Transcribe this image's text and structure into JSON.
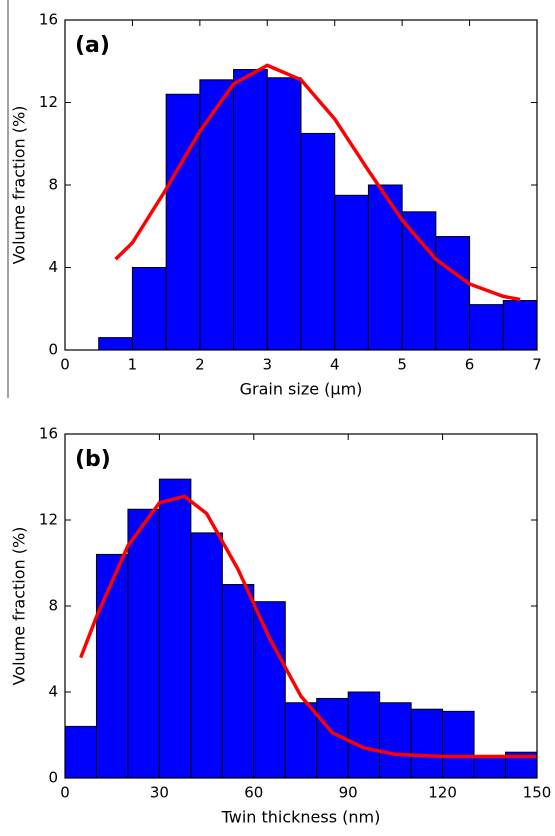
{
  "chart_data": [
    {
      "type": "histogram",
      "label": "(a)",
      "xlabel": "Grain size (μm)",
      "ylabel": "Volume fraction (%)",
      "bins": [
        0.5,
        1,
        1.5,
        2,
        2.5,
        3,
        3.5,
        4,
        4.5,
        5,
        5.5,
        6,
        6.5,
        7
      ],
      "values": [
        0.6,
        4.0,
        12.4,
        13.1,
        13.6,
        13.2,
        10.5,
        7.5,
        8.0,
        6.7,
        5.5,
        2.2,
        2.4
      ],
      "color": "#0000ff",
      "curve": {
        "color": "#ff0000",
        "x": [
          0.75,
          1,
          1.5,
          2,
          2.5,
          3,
          3.5,
          4,
          4.5,
          5,
          5.5,
          6,
          6.5,
          6.75
        ],
        "y": [
          4.4,
          5.2,
          7.8,
          10.6,
          12.9,
          13.8,
          13.1,
          11.2,
          8.7,
          6.3,
          4.4,
          3.2,
          2.6,
          2.45
        ]
      },
      "xlim": [
        0,
        7
      ],
      "xticks": [
        0,
        1,
        2,
        3,
        4,
        5,
        6,
        7
      ],
      "ylim": [
        0,
        16
      ],
      "yticks": [
        0,
        4,
        8,
        12,
        16
      ]
    },
    {
      "type": "histogram",
      "label": "(b)",
      "xlabel": "Twin thickness (nm)",
      "ylabel": "Volume fraction (%)",
      "bins": [
        0,
        10,
        20,
        30,
        40,
        50,
        60,
        70,
        80,
        90,
        100,
        110,
        120,
        130,
        140,
        150
      ],
      "values": [
        2.4,
        10.4,
        12.5,
        13.9,
        11.4,
        9.0,
        8.2,
        3.5,
        3.7,
        4.0,
        3.5,
        3.2,
        3.1,
        1.0,
        1.2
      ],
      "color": "#0000ff",
      "curve": {
        "color": "#ff0000",
        "x": [
          5,
          10,
          20,
          30,
          38,
          45,
          55,
          65,
          75,
          85,
          95,
          105,
          120,
          150
        ],
        "y": [
          5.6,
          7.5,
          10.8,
          12.8,
          13.1,
          12.3,
          9.7,
          6.5,
          3.8,
          2.1,
          1.4,
          1.1,
          1.0,
          1.0
        ]
      },
      "xlim": [
        0,
        150
      ],
      "xticks": [
        0,
        30,
        60,
        90,
        120,
        150
      ],
      "ylim": [
        0,
        16
      ],
      "yticks": [
        0,
        4,
        8,
        12,
        16
      ]
    }
  ]
}
